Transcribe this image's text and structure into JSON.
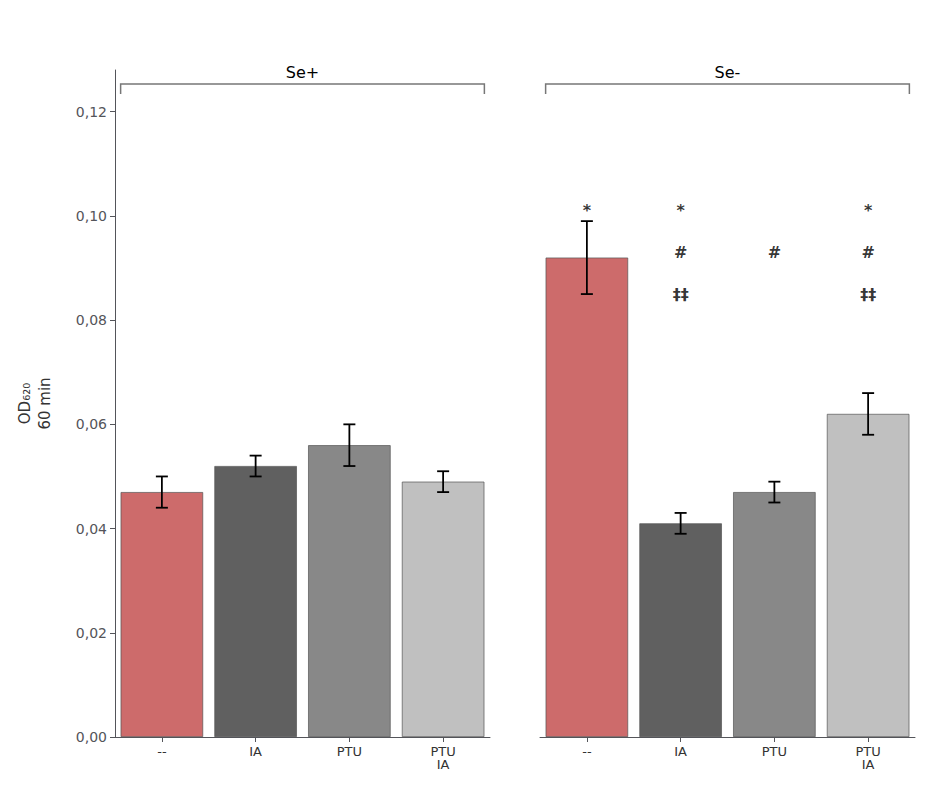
{
  "chart_data": {
    "type": "bar",
    "categories": [
      "--",
      "IA",
      "PTU",
      "PTU\nIA",
      "--",
      "IA",
      "PTU",
      "PTU\nIA"
    ],
    "values": [
      0.047,
      0.052,
      0.056,
      0.049,
      0.092,
      0.041,
      0.047,
      0.062
    ],
    "errors": [
      0.003,
      0.002,
      0.004,
      0.002,
      0.007,
      0.002,
      0.002,
      0.004
    ],
    "colors": [
      "#cd6b6b",
      "#606060",
      "#888888",
      "#c0c0c0",
      "#cd6b6b",
      "#606060",
      "#888888",
      "#c0c0c0"
    ],
    "groups": [
      "Se+",
      "Se-"
    ],
    "ylabel": "OD₆₂₀\n60 min",
    "ylim": [
      0,
      0.128
    ],
    "yticks": [
      {
        "value": 0.0,
        "label": "0,00"
      },
      {
        "value": 0.02,
        "label": "0,02"
      },
      {
        "value": 0.04,
        "label": "0,04"
      },
      {
        "value": 0.06,
        "label": "0,06"
      },
      {
        "value": 0.08,
        "label": "0,08"
      },
      {
        "value": 0.1,
        "label": "0,10"
      },
      {
        "value": 0.12,
        "label": "0,12"
      }
    ],
    "grid": false,
    "annotations": [
      {
        "text": "*",
        "bar": 4,
        "y": 0.101
      },
      {
        "text": "*",
        "bar": 5,
        "y": 0.101
      },
      {
        "text": "#",
        "bar": 5,
        "y": 0.093
      },
      {
        "text": "‡‡",
        "bar": 5,
        "y": 0.085
      },
      {
        "text": "#",
        "bar": 6,
        "y": 0.093
      },
      {
        "text": "*",
        "bar": 7,
        "y": 0.101
      },
      {
        "text": "#",
        "bar": 7,
        "y": 0.093
      },
      {
        "text": "‡‡",
        "bar": 7,
        "y": 0.085
      }
    ]
  }
}
